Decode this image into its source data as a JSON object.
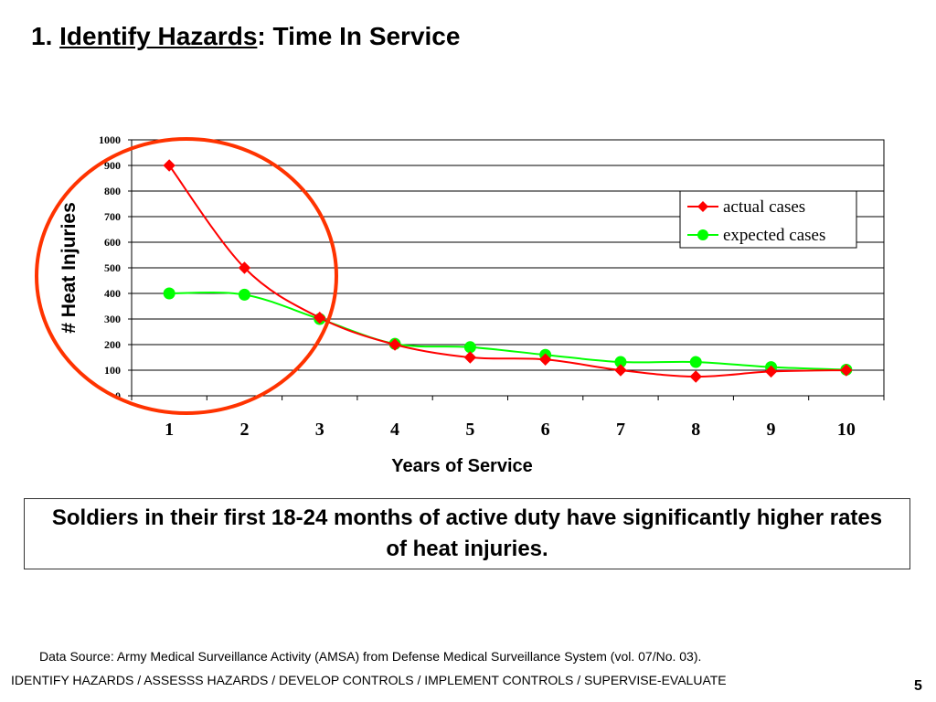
{
  "slide": {
    "title_prefix": "1. ",
    "title_underlined": "Identify Hazards",
    "title_suffix": ":  Time In Service",
    "callout": "Soldiers in their first 18-24 months of active duty have significantly higher rates of heat injuries.",
    "data_source": "Data Source:  Army Medical Surveillance Activity (AMSA) from Defense Medical Surveillance System (vol. 07/No. 03).",
    "footer": "IDENTIFY HAZARDS / ASSESSS  HAZARDS / DEVELOP CONTROLS / IMPLEMENT CONTROLS / SUPERVISE-EVALUATE",
    "page_number": "5"
  },
  "chart_data": {
    "type": "line",
    "categories": [
      "1",
      "2",
      "3",
      "4",
      "5",
      "6",
      "7",
      "8",
      "9",
      "10"
    ],
    "xlabel": "Years of Service",
    "ylabel": "# Heat Injuries",
    "ylim": [
      0,
      1000
    ],
    "yticks": [
      "0",
      "100",
      "200",
      "300",
      "400",
      "500",
      "600",
      "700",
      "800",
      "900",
      "1000"
    ],
    "grid": "horizontal",
    "legend_position": "right",
    "series": [
      {
        "name": "actual cases",
        "color": "#ff0000",
        "marker": "diamond",
        "values": [
          900,
          500,
          305,
          200,
          150,
          142,
          100,
          75,
          95,
          100
        ]
      },
      {
        "name": "expected cases",
        "color": "#00ff00",
        "marker": "circle",
        "values": [
          400,
          395,
          300,
          203,
          190,
          160,
          132,
          132,
          112,
          102
        ]
      }
    ],
    "annotation": {
      "shape": "circle",
      "color": "#ff3300",
      "around_categories": [
        "1",
        "2",
        "3"
      ]
    }
  }
}
